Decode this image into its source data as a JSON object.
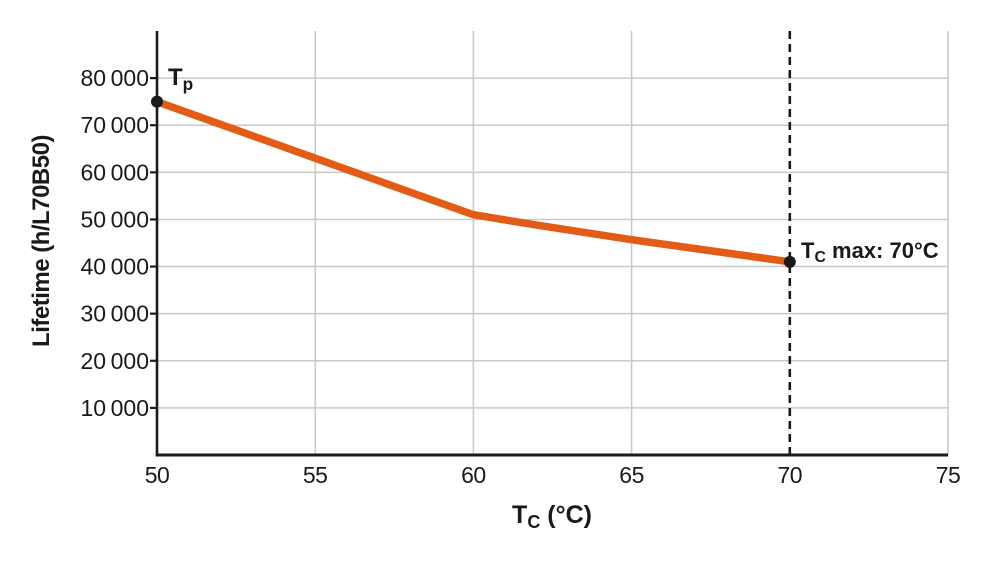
{
  "figure": {
    "colors": {
      "background": "#ffffff",
      "series_orange": "#e25c15",
      "grid": "#c9c9c9",
      "axis": "#1a1a1a",
      "text": "#1a1a1a"
    }
  },
  "chart_data": {
    "type": "line",
    "title": "",
    "grid": true,
    "x_axis": {
      "label_prefix": "T",
      "label_sub": "C",
      "label_suffix": " (°C)",
      "min": 50,
      "max": 75,
      "ticks": [
        50,
        55,
        60,
        65,
        70,
        75
      ]
    },
    "y_axis": {
      "label": "Lifetime (h/L70B50)",
      "min": 0,
      "max": 90000,
      "ticks": [
        {
          "v": 10000,
          "label": "10 000"
        },
        {
          "v": 20000,
          "label": "20 000"
        },
        {
          "v": 30000,
          "label": "30 000"
        },
        {
          "v": 40000,
          "label": "40 000"
        },
        {
          "v": 50000,
          "label": "50 000"
        },
        {
          "v": 60000,
          "label": "60 000"
        },
        {
          "v": 70000,
          "label": "70 000"
        },
        {
          "v": 80000,
          "label": "80 000"
        }
      ]
    },
    "series": [
      {
        "name": "lifetime-vs-tc",
        "color": "#e25c15",
        "points": [
          [
            50,
            75000
          ],
          [
            55,
            63000
          ],
          [
            60,
            51000
          ],
          [
            62,
            48800
          ],
          [
            65,
            45700
          ],
          [
            70,
            41000
          ]
        ]
      }
    ],
    "markers": [
      {
        "x": 50,
        "y": 75000
      },
      {
        "x": 70,
        "y": 41000
      }
    ],
    "reference_line": {
      "x": 70,
      "style": "dashed"
    },
    "annotations": {
      "tp": {
        "prefix": "T",
        "sub": "p",
        "suffix": ""
      },
      "tc_max": {
        "prefix": "T",
        "sub": "C",
        "suffix": " max: 70°C"
      }
    }
  }
}
